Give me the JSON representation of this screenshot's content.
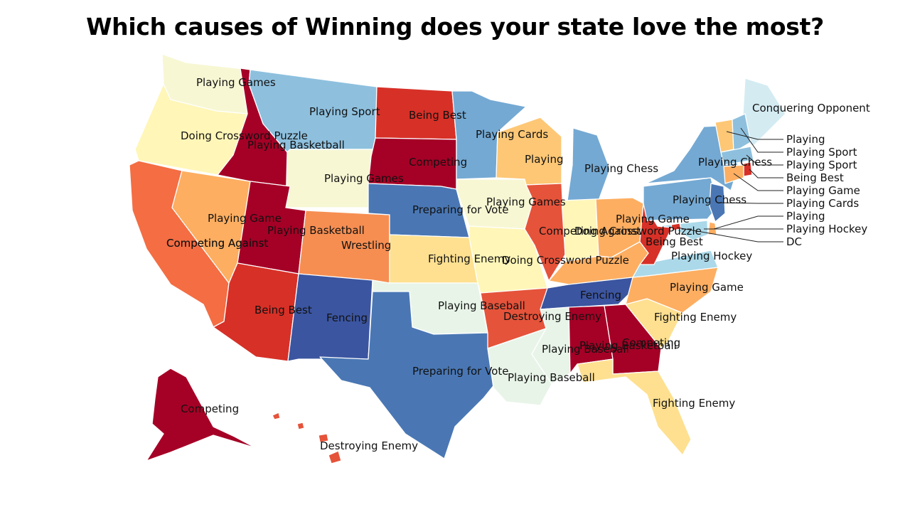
{
  "title": "Which causes of Winning does your state love the most?",
  "palette": {
    "dark_red": "#a50026",
    "red": "#d73027",
    "red_orange": "#e5533a",
    "orange": "#f46d43",
    "light_orange": "#fdae61",
    "yellow": "#fee090",
    "pale_yellow": "#fff6b8",
    "cream": "#f7f7d4",
    "pale_green": "#e8f4e8",
    "pale_blue": "#d4ebf2",
    "light_blue": "#abd9e9",
    "sky_blue": "#8ec0de",
    "mid_blue": "#74a9d3",
    "blue": "#4a77b4",
    "dark_blue": "#3b55a0"
  },
  "states": [
    {
      "id": "WA",
      "label": "Playing Games",
      "color": "#f7f7d4"
    },
    {
      "id": "OR",
      "label": "Doing Crossword Puzzle",
      "color": "#fff6b8"
    },
    {
      "id": "CA",
      "label": "Competing Against",
      "color": "#f46d43"
    },
    {
      "id": "NV",
      "label": "Competing Against",
      "color": "#fdae61"
    },
    {
      "id": "ID",
      "label": "Playing Basketball",
      "color": "#a50026"
    },
    {
      "id": "MT",
      "label": "Playing Sport",
      "color": "#8ec0de"
    },
    {
      "id": "WY",
      "label": "Playing Games",
      "color": "#f7f7d4"
    },
    {
      "id": "UT",
      "label": "Playing Game",
      "color": "#a50026"
    },
    {
      "id": "AZ",
      "label": "Being Best",
      "color": "#d73027"
    },
    {
      "id": "CO",
      "label": "Playing Basketball",
      "color": "#f68e52"
    },
    {
      "id": "NM",
      "label": "Fencing",
      "color": "#3b55a0"
    },
    {
      "id": "ND",
      "label": "Being Best",
      "color": "#d73027"
    },
    {
      "id": "SD",
      "label": "Competing",
      "color": "#a50026"
    },
    {
      "id": "NE",
      "label": "Preparing for Vote",
      "color": "#4a77b4"
    },
    {
      "id": "KS",
      "label": "Wrestling",
      "color": "#fee090"
    },
    {
      "id": "OK",
      "label": "Playing Baseball",
      "color": "#e8f4e8"
    },
    {
      "id": "TX",
      "label": "Preparing for Vote",
      "color": "#4a77b4"
    },
    {
      "id": "MN",
      "label": "Playing Cards",
      "color": "#74a9d3"
    },
    {
      "id": "IA",
      "label": "Playing Games",
      "color": "#f7f7d4"
    },
    {
      "id": "MO",
      "label": "Fighting Enemy",
      "color": "#fff6b8"
    },
    {
      "id": "AR",
      "label": "Destroying Enemy",
      "color": "#e5533a"
    },
    {
      "id": "LA",
      "label": "Playing Baseball",
      "color": "#e8f4e8"
    },
    {
      "id": "WI",
      "label": "Playing",
      "color": "#fdc775"
    },
    {
      "id": "IL",
      "label": "Competing Against",
      "color": "#e5533a"
    },
    {
      "id": "MI",
      "label": "Playing Chess",
      "color": "#74a9d3"
    },
    {
      "id": "IN",
      "label": "Doing Crossword Puzzle",
      "color": "#fff6b8"
    },
    {
      "id": "OH",
      "label": "Playing Game",
      "color": "#fdae61"
    },
    {
      "id": "KY",
      "label": "Doing Crossword Puzzle",
      "color": "#fdae61"
    },
    {
      "id": "TN",
      "label": "Fencing",
      "color": "#3b55a0"
    },
    {
      "id": "MS",
      "label": "Playing Baseball",
      "color": "#e8f4e8"
    },
    {
      "id": "AL",
      "label": "Playing Basketball",
      "color": "#a50026"
    },
    {
      "id": "GA",
      "label": "Competing",
      "color": "#a50026"
    },
    {
      "id": "FL",
      "label": "Fighting Enemy",
      "color": "#fee090"
    },
    {
      "id": "SC",
      "label": "Fighting Enemy",
      "color": "#fee090"
    },
    {
      "id": "NC",
      "label": "Playing Game",
      "color": "#fdae61"
    },
    {
      "id": "VA",
      "label": "Playing Hockey",
      "color": "#abd9e9"
    },
    {
      "id": "WV",
      "label": "Being Best",
      "color": "#d73027"
    },
    {
      "id": "PA",
      "label": "Playing Chess",
      "color": "#74a9d3"
    },
    {
      "id": "NY",
      "label": "Playing Chess",
      "color": "#74a9d3"
    },
    {
      "id": "ME",
      "label": "Conquering Opponent",
      "color": "#d4ebf2"
    },
    {
      "id": "VT",
      "label": "Playing",
      "color": "#fdc775"
    },
    {
      "id": "NH",
      "label": "Playing Sport",
      "color": "#8ec0de"
    },
    {
      "id": "MA",
      "label": "Playing Sport",
      "color": "#8ec0de"
    },
    {
      "id": "RI",
      "label": "Being Best",
      "color": "#d73027"
    },
    {
      "id": "CT",
      "label": "Playing Game",
      "color": "#fdae61"
    },
    {
      "id": "NJ",
      "label": "Playing Cards",
      "color": "#4a77b4"
    },
    {
      "id": "DE",
      "label": "Playing",
      "color": "#fdae61"
    },
    {
      "id": "MD",
      "label": "Playing Hockey",
      "color": "#abd9e9"
    },
    {
      "id": "DC",
      "label": "DC",
      "color": "#d73027"
    },
    {
      "id": "AK",
      "label": "Competing",
      "color": "#a50026"
    },
    {
      "id": "HI",
      "label": "Destroying Enemy",
      "color": "#e5533a"
    }
  ]
}
